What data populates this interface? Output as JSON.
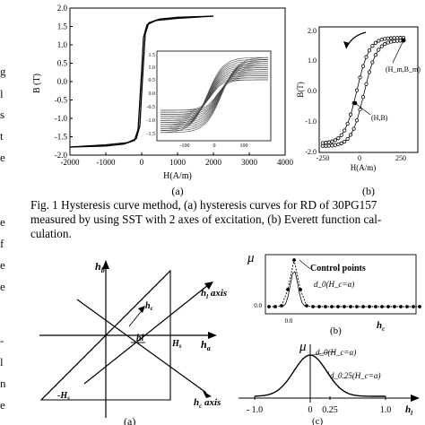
{
  "left_margin_fragments": [
    "g",
    "l",
    "s",
    "t",
    "e",
    "e",
    "f",
    "e",
    "e",
    "-",
    "l",
    "n",
    "e"
  ],
  "figure1": {
    "caption_lines": [
      "Fig. 1 Hysteresis curve method, (a) hysteresis curves for RD of 30PG157",
      "measured by using SST with 2 axes of excitation, (b) Everett function cal-",
      "culation."
    ],
    "sub_a_label": "(a)",
    "sub_b_label": "(b)"
  },
  "figure2": {
    "sub_a_label": "(a)",
    "sub_b_label": "(b)",
    "sub_c_label": "(c)"
  },
  "chart_data": [
    {
      "id": "fig1a-main",
      "type": "line",
      "xlabel": "H(A/m)",
      "ylabel": "B (T)",
      "xlim": [
        -2000,
        4000
      ],
      "ylim": [
        -2.0,
        2.0
      ],
      "xticks": [
        "-2000",
        "-1000",
        "0",
        "1000",
        "2000",
        "3000",
        "4000"
      ],
      "yticks": [
        "2.0",
        "1.5",
        "1.0",
        "0.5",
        "0.0",
        "-0.5",
        "-1.0",
        "-1.5",
        "-2.0"
      ],
      "series": [
        {
          "x": [
            -2000,
            -1000,
            -400,
            -150,
            -50,
            0,
            50,
            100,
            200,
            500,
            1000,
            2000
          ],
          "y": [
            -1.78,
            -1.72,
            -1.66,
            -1.55,
            -1.2,
            -0.3,
            0.5,
            1.3,
            1.6,
            1.7,
            1.75,
            1.78
          ]
        },
        {
          "x": [
            -2000,
            -1000,
            -500,
            -200,
            -100,
            -50,
            0,
            50,
            150,
            400,
            1000,
            2000
          ],
          "y": [
            -1.78,
            -1.75,
            -1.7,
            -1.6,
            -1.3,
            -0.5,
            0.3,
            1.2,
            1.55,
            1.66,
            1.72,
            1.78
          ]
        }
      ]
    },
    {
      "id": "fig1a-inset",
      "type": "line",
      "xticks": [
        "-100",
        "0",
        "100"
      ],
      "yticks": [
        "1.5",
        "1.0",
        "0.5",
        "0.0",
        "-0.5",
        "-1.0",
        "-1.5"
      ]
    },
    {
      "id": "fig1b",
      "type": "line",
      "xlabel": "H(A/m)",
      "ylabel": "B(T)",
      "xticks": [
        "-250",
        "0",
        "250"
      ],
      "yticks": [
        "2.0",
        "1.0",
        "0.0",
        "-1.0",
        "-2.0"
      ],
      "annotations": [
        "(H_m,B_m)",
        "(H,B)"
      ]
    },
    {
      "id": "fig2b",
      "type": "line",
      "ylabel": "μ",
      "xlabel": "h_c",
      "legend": "Control points",
      "yticks": [
        "0.0"
      ],
      "xticks": [
        "0.0"
      ],
      "annotations": [
        "d_0(H_c=α)"
      ]
    },
    {
      "id": "fig2c",
      "type": "line",
      "ylabel": "μ",
      "xlabel": "h_l",
      "xticks": [
        "- 1.0",
        "0",
        "0.25",
        "1.0"
      ],
      "annotations": [
        "d_0(H_c=α)",
        "d_0.25(H_c=α)"
      ]
    }
  ]
}
